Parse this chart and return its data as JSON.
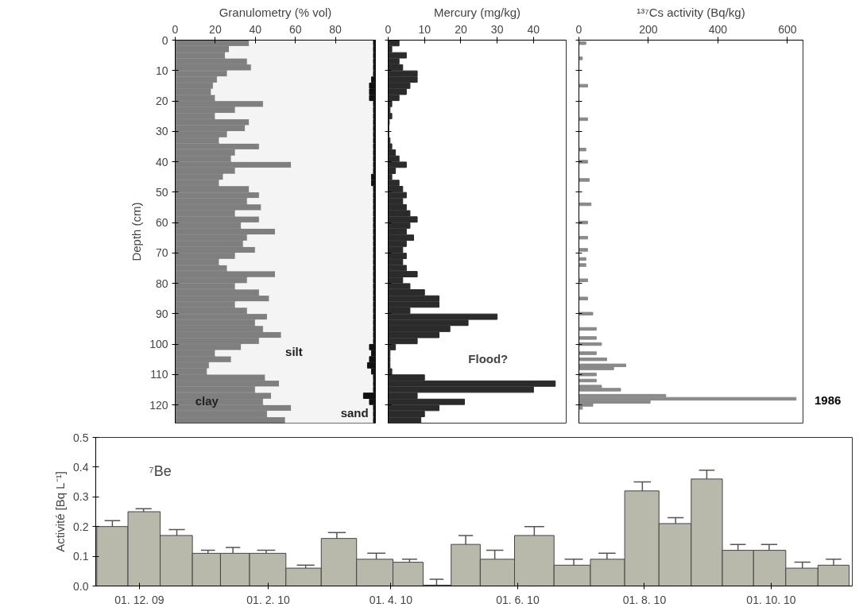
{
  "chart_data": [
    {
      "type": "bar",
      "orientation": "horizontal",
      "stacked": true,
      "xlabel": "Granulometry (% vol)",
      "ylabel": "Depth (cm)",
      "xlim": [
        0,
        100
      ],
      "xticks": [
        0,
        20,
        40,
        60,
        80
      ],
      "ylim": [
        126,
        0
      ],
      "yticks": [
        0,
        10,
        20,
        30,
        40,
        50,
        60,
        70,
        80,
        90,
        100,
        110,
        120
      ],
      "grid": false,
      "x": [
        1,
        3,
        5,
        7,
        9,
        11,
        13,
        15,
        17,
        19,
        21,
        23,
        25,
        27,
        29,
        31,
        33,
        35,
        37,
        39,
        41,
        43,
        45,
        47,
        49,
        51,
        53,
        55,
        57,
        59,
        61,
        63,
        65,
        67,
        69,
        71,
        73,
        75,
        77,
        79,
        81,
        83,
        85,
        87,
        89,
        91,
        93,
        95,
        97,
        99,
        101,
        103,
        105,
        107,
        109,
        111,
        113,
        115,
        117,
        119,
        121,
        123,
        125
      ],
      "series": [
        {
          "name": "clay",
          "color": "#7f7f7f",
          "values": [
            37,
            27,
            25,
            36,
            38,
            26,
            21,
            19,
            18,
            20,
            44,
            30,
            20,
            37,
            35,
            26,
            22,
            42,
            30,
            28,
            58,
            30,
            24,
            22,
            37,
            42,
            36,
            43,
            30,
            42,
            33,
            50,
            36,
            34,
            40,
            30,
            22,
            26,
            50,
            36,
            30,
            42,
            47,
            30,
            36,
            46,
            40,
            44,
            53,
            42,
            33,
            20,
            28,
            17,
            16,
            45,
            52,
            40,
            48,
            44,
            58,
            46,
            55
          ]
        },
        {
          "name": "silt",
          "color": "#f4f4f4",
          "values": [
            62,
            72,
            74,
            63,
            61,
            73,
            77,
            78,
            79,
            77,
            55,
            69,
            79,
            62,
            64,
            73,
            77,
            57,
            69,
            71,
            41,
            69,
            74,
            76,
            62,
            57,
            63,
            56,
            69,
            57,
            66,
            49,
            63,
            65,
            59,
            69,
            77,
            73,
            49,
            63,
            69,
            57,
            52,
            69,
            63,
            53,
            59,
            55,
            46,
            57,
            64,
            78,
            69,
            79,
            82,
            54,
            47,
            59,
            46,
            53,
            41,
            53,
            44
          ]
        },
        {
          "name": "sand",
          "color": "#111111",
          "values": [
            1,
            1,
            1,
            1,
            1,
            1,
            2,
            3,
            3,
            3,
            1,
            1,
            1,
            1,
            1,
            1,
            1,
            1,
            1,
            1,
            1,
            1,
            2,
            2,
            1,
            1,
            1,
            1,
            1,
            1,
            1,
            1,
            1,
            1,
            1,
            1,
            1,
            1,
            1,
            1,
            1,
            1,
            1,
            1,
            1,
            1,
            1,
            1,
            1,
            1,
            3,
            2,
            3,
            4,
            2,
            1,
            1,
            1,
            6,
            3,
            1,
            1,
            1
          ]
        }
      ]
    },
    {
      "type": "bar",
      "orientation": "horizontal",
      "xlabel": "Mercury (mg/kg)",
      "xlim": [
        0,
        49
      ],
      "xticks": [
        0,
        10,
        20,
        30,
        40
      ],
      "ylim": [
        126,
        0
      ],
      "yticks": [
        0,
        10,
        20,
        30,
        40,
        50,
        60,
        70,
        80,
        90,
        100,
        110,
        120
      ],
      "tick_labels": "x",
      "grid": false,
      "annotations": [
        "Flood?"
      ],
      "x": [
        1,
        3,
        5,
        7,
        9,
        11,
        13,
        15,
        17,
        19,
        21,
        23,
        25,
        27,
        29,
        31,
        33,
        35,
        37,
        39,
        41,
        43,
        45,
        47,
        49,
        51,
        53,
        55,
        57,
        59,
        61,
        63,
        65,
        67,
        69,
        71,
        73,
        75,
        77,
        79,
        81,
        83,
        85,
        87,
        89,
        91,
        93,
        95,
        97,
        99,
        101,
        103,
        105,
        107,
        109,
        111,
        113,
        115,
        117,
        119,
        121,
        123,
        125
      ],
      "series": [
        {
          "color": "#2b2b2b",
          "values": [
            3,
            1,
            5,
            3,
            4,
            8,
            8,
            6,
            5,
            3,
            1,
            0.5,
            1,
            0.3,
            0.2,
            0.2,
            0.5,
            1,
            2,
            3,
            5,
            2,
            1,
            3,
            4,
            5,
            4,
            5,
            6,
            8,
            6,
            5,
            7,
            5,
            4,
            5,
            4,
            5,
            8,
            4,
            6,
            10,
            14,
            14,
            6,
            30,
            22,
            17,
            14,
            8,
            2,
            0.5,
            0.5,
            0.5,
            1,
            10,
            46,
            40,
            8,
            21,
            14,
            10,
            9
          ]
        }
      ]
    },
    {
      "type": "bar",
      "orientation": "horizontal",
      "xlabel": "¹³⁷Cs activity (Bq/kg)",
      "xlim": [
        0,
        645
      ],
      "xticks": [
        0,
        200,
        400,
        600
      ],
      "ylim": [
        126,
        0
      ],
      "yticks": [
        0,
        10,
        20,
        30,
        40,
        50,
        60,
        70,
        80,
        90,
        100,
        110,
        120
      ],
      "tick_labels": "x",
      "grid": false,
      "annotations": [
        "1986"
      ],
      "x": [
        1,
        6,
        15,
        26,
        36,
        40,
        46,
        54,
        60,
        65,
        69,
        72,
        74,
        79,
        85,
        90,
        95,
        98,
        100,
        103,
        105,
        107,
        108,
        110,
        112,
        114,
        115,
        117,
        118,
        119,
        120,
        121
      ],
      "series": [
        {
          "color": "#8a8a8a",
          "values": [
            20,
            10,
            25,
            25,
            20,
            25,
            30,
            35,
            25,
            25,
            25,
            20,
            20,
            25,
            25,
            40,
            50,
            50,
            65,
            50,
            80,
            135,
            100,
            50,
            50,
            65,
            120,
            250,
            625,
            205,
            40,
            10
          ]
        }
      ]
    },
    {
      "type": "bar",
      "ylabel": "Activité [Bq L⁻¹]",
      "annotations": [
        "⁷Be"
      ],
      "grid": false,
      "xlim": [
        "2009-11-10",
        "2010-11-09"
      ],
      "xticks": [
        {
          "value": "2009-12-01",
          "label": "01. 12. 09"
        },
        {
          "value": "2010-02-01",
          "label": "01. 2. 10"
        },
        {
          "value": "2010-04-01",
          "label": "01. 4. 10"
        },
        {
          "value": "2010-06-01",
          "label": "01. 6. 10"
        },
        {
          "value": "2010-08-01",
          "label": "01. 8. 10"
        },
        {
          "value": "2010-10-01",
          "label": "01. 10. 10"
        }
      ],
      "ylim": [
        0,
        0.5
      ],
      "yticks": [
        {
          "value": 0,
          "label": "0.0"
        },
        {
          "value": 0.1,
          "label": "0.1"
        },
        {
          "value": 0.2,
          "label": "0.2"
        },
        {
          "value": 0.3,
          "label": "0.3"
        },
        {
          "value": 0.4,
          "label": "0.4"
        },
        {
          "value": 0.5,
          "label": "0.5"
        }
      ],
      "x": [
        "2009-11-18",
        "2009-12-03",
        "2009-12-19",
        "2010-01-03",
        "2010-01-15",
        "2010-01-31",
        "2010-02-19",
        "2010-03-06",
        "2010-03-25",
        "2010-04-10",
        "2010-04-23",
        "2010-05-07",
        "2010-05-21",
        "2010-06-09",
        "2010-06-28",
        "2010-07-14",
        "2010-07-31",
        "2010-08-16",
        "2010-08-31",
        "2010-09-15",
        "2010-09-30",
        "2010-10-16",
        "2010-10-31"
      ],
      "series": [
        {
          "color": "#b9b9ab",
          "values": [
            0.2,
            0.25,
            0.17,
            0.11,
            0.11,
            0.11,
            0.06,
            0.16,
            0.09,
            0.08,
            0.003,
            0.14,
            0.09,
            0.17,
            0.07,
            0.09,
            0.32,
            0.21,
            0.36,
            0.12,
            0.12,
            0.06,
            0.07
          ],
          "errors": [
            0.02,
            0.01,
            0.02,
            0.01,
            0.02,
            0.01,
            0.01,
            0.02,
            0.02,
            0.01,
            0.02,
            0.03,
            0.03,
            0.03,
            0.02,
            0.02,
            0.03,
            0.02,
            0.03,
            0.02,
            0.02,
            0.02,
            0.02
          ]
        }
      ]
    }
  ]
}
